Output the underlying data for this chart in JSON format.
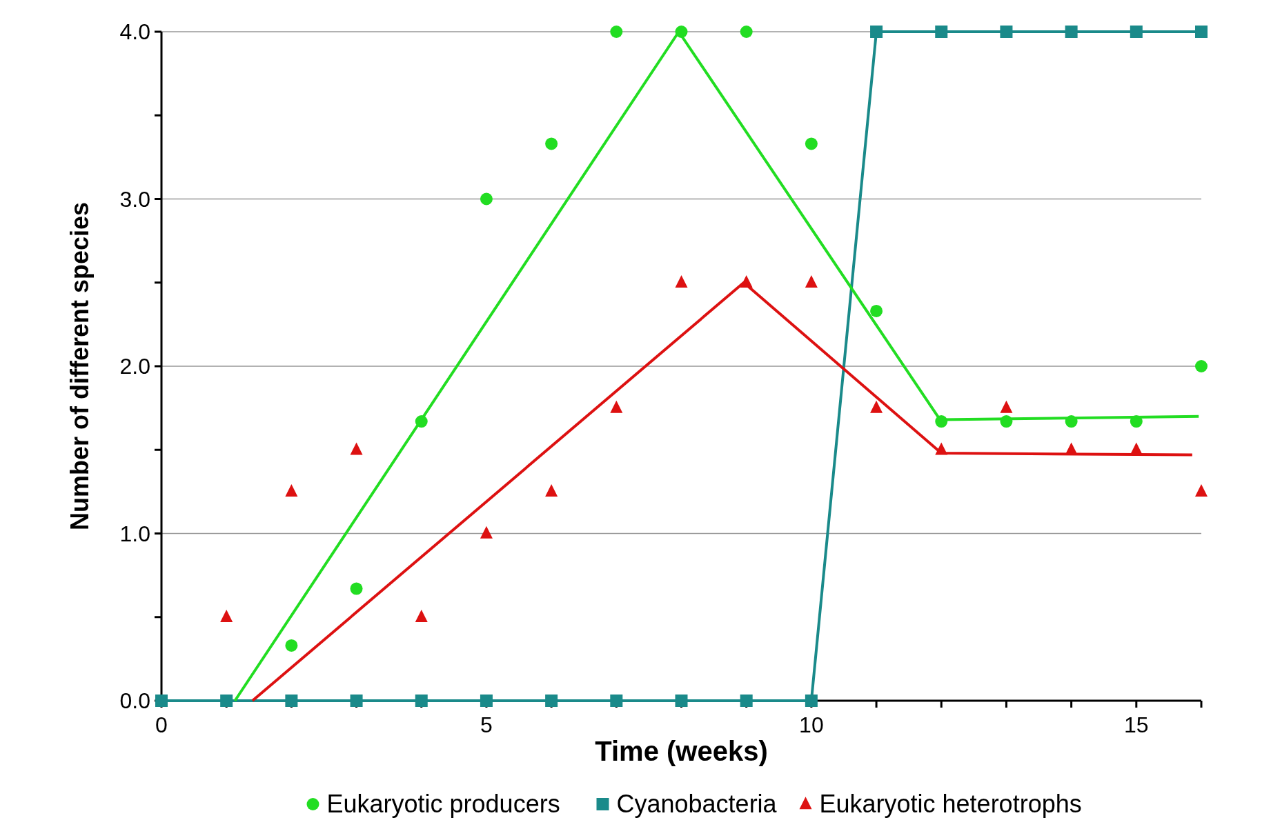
{
  "chart_data": {
    "type": "scatter",
    "xlabel": "Time (weeks)",
    "ylabel": "Number of different species",
    "x": [
      0,
      1,
      2,
      3,
      4,
      5,
      6,
      7,
      8,
      9,
      10,
      11,
      12,
      13,
      14,
      15,
      16
    ],
    "xlim": [
      0,
      16
    ],
    "xticks": [
      0,
      {
        "value": 1,
        "label": null
      },
      {
        "value": 2,
        "label": null
      },
      {
        "value": 3,
        "label": null
      },
      {
        "value": 4,
        "label": null
      },
      5,
      {
        "value": 6,
        "label": null
      },
      {
        "value": 7,
        "label": null
      },
      {
        "value": 8,
        "label": null
      },
      {
        "value": 9,
        "label": null
      },
      10,
      {
        "value": 11,
        "label": null
      },
      {
        "value": 12,
        "label": null
      },
      {
        "value": 13,
        "label": null
      },
      {
        "value": 14,
        "label": null
      },
      15,
      {
        "value": 16,
        "label": null
      }
    ],
    "ylim": [
      0,
      4
    ],
    "yticks": [
      {
        "value": 0,
        "label": "0.0"
      },
      {
        "value": 0.5,
        "label": null
      },
      {
        "value": 1,
        "label": "1.0"
      },
      {
        "value": 1.5,
        "label": null
      },
      {
        "value": 2,
        "label": "2.0"
      },
      {
        "value": 2.5,
        "label": null
      },
      {
        "value": 3,
        "label": "3.0"
      },
      {
        "value": 3.5,
        "label": null
      },
      {
        "value": 4,
        "label": "4.0"
      }
    ],
    "grid": "y",
    "legend": "bottom",
    "series": [
      {
        "name": "Eukaryotic producers",
        "marker": "circle",
        "color": "#22dd22",
        "values": [
          null,
          null,
          0.33,
          0.67,
          1.67,
          3.0,
          3.33,
          4.0,
          4.0,
          4.0,
          3.33,
          2.33,
          1.67,
          1.67,
          1.67,
          1.67,
          2.0
        ]
      },
      {
        "name": "Cyanobacteria",
        "type": "line",
        "marker": "square",
        "color": "#1a8a8a",
        "values": [
          0,
          0,
          0,
          0,
          0,
          0,
          0,
          0,
          0,
          0,
          0,
          4,
          4,
          4,
          4,
          4,
          4
        ]
      },
      {
        "name": "Eukaryotic heterotrophs",
        "marker": "triangle",
        "color": "#dd1111",
        "values": [
          null,
          0.5,
          1.25,
          1.5,
          0.5,
          1.0,
          1.25,
          1.75,
          2.5,
          2.5,
          2.5,
          1.75,
          1.5,
          1.75,
          1.5,
          1.5,
          1.25
        ]
      },
      {
        "type": "line",
        "marker": "none",
        "color": "#22dd22",
        "x": [
          1.13,
          7.96,
          11.98,
          15.96
        ],
        "values": [
          0,
          4.0,
          1.68,
          1.7
        ]
      },
      {
        "type": "line",
        "marker": "none",
        "color": "#dd1111",
        "x": [
          1.4,
          8.96,
          12.0,
          15.86
        ],
        "values": [
          0,
          2.5,
          1.48,
          1.47
        ]
      }
    ]
  }
}
